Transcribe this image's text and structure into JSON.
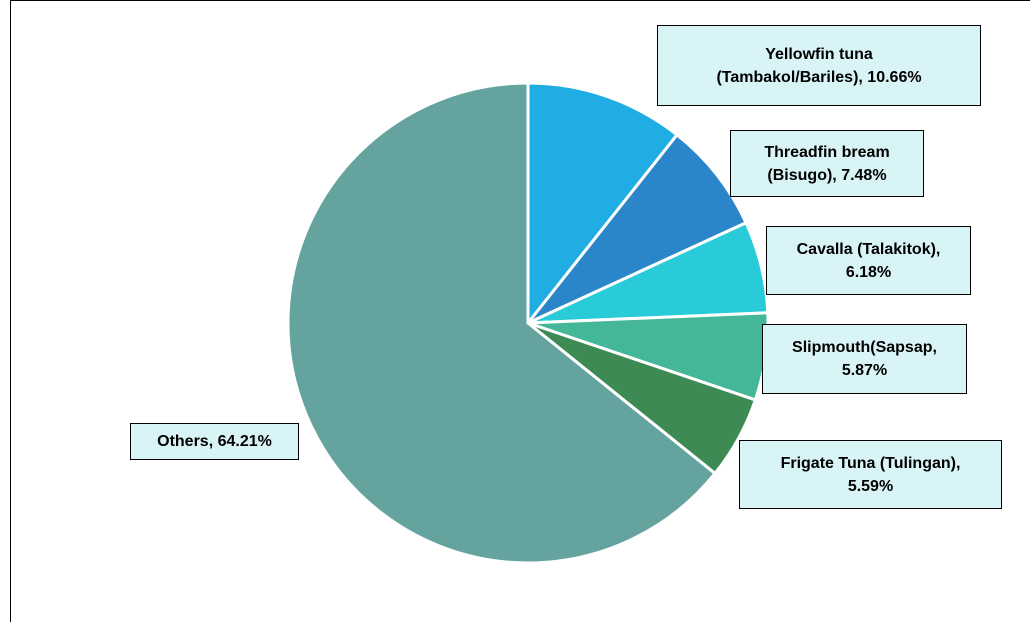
{
  "chart_data": {
    "type": "pie",
    "title": "",
    "start_angle_deg": 0,
    "direction": "clockwise",
    "slices": [
      {
        "label": "Yellowfin tuna (Tambakol/Bariles)",
        "value": 10.66,
        "display": "Yellowfin tuna (Tambakol/Bariles), 10.66%",
        "line1": "Yellowfin tuna",
        "line2": "(Tambakol/Bariles), 10.66%",
        "color": "#1fade3"
      },
      {
        "label": "Threadfin bream (Bisugo)",
        "value": 7.48,
        "display": "Threadfin bream (Bisugo), 7.48%",
        "line1": "Threadfin bream",
        "line2": "(Bisugo), 7.48%",
        "color": "#2a85c9"
      },
      {
        "label": "Cavalla (Talakitok)",
        "value": 6.18,
        "display": "Cavalla (Talakitok), 6.18%",
        "line1": "Cavalla (Talakitok),",
        "line2": "6.18%",
        "color": "#2acbd9"
      },
      {
        "label": "Slipmouth(Sapsap",
        "value": 5.87,
        "display": "Slipmouth(Sapsap, 5.87%",
        "line1": "Slipmouth(Sapsap,",
        "line2": "5.87%",
        "color": "#43b797"
      },
      {
        "label": "Frigate Tuna (Tulingan)",
        "value": 5.59,
        "display": "Frigate Tuna (Tulingan), 5.59%",
        "line1": "Frigate Tuna (Tulingan),",
        "line2": "5.59%",
        "color": "#3e8a55"
      },
      {
        "label": "Others",
        "value": 64.21,
        "display": "Others, 64.21%",
        "line1": "Others, 64.21%",
        "line2": "",
        "color": "#64a39e"
      }
    ],
    "legend": "none",
    "label_style": {
      "background": "#d9f4f7",
      "border": "#000000"
    }
  }
}
